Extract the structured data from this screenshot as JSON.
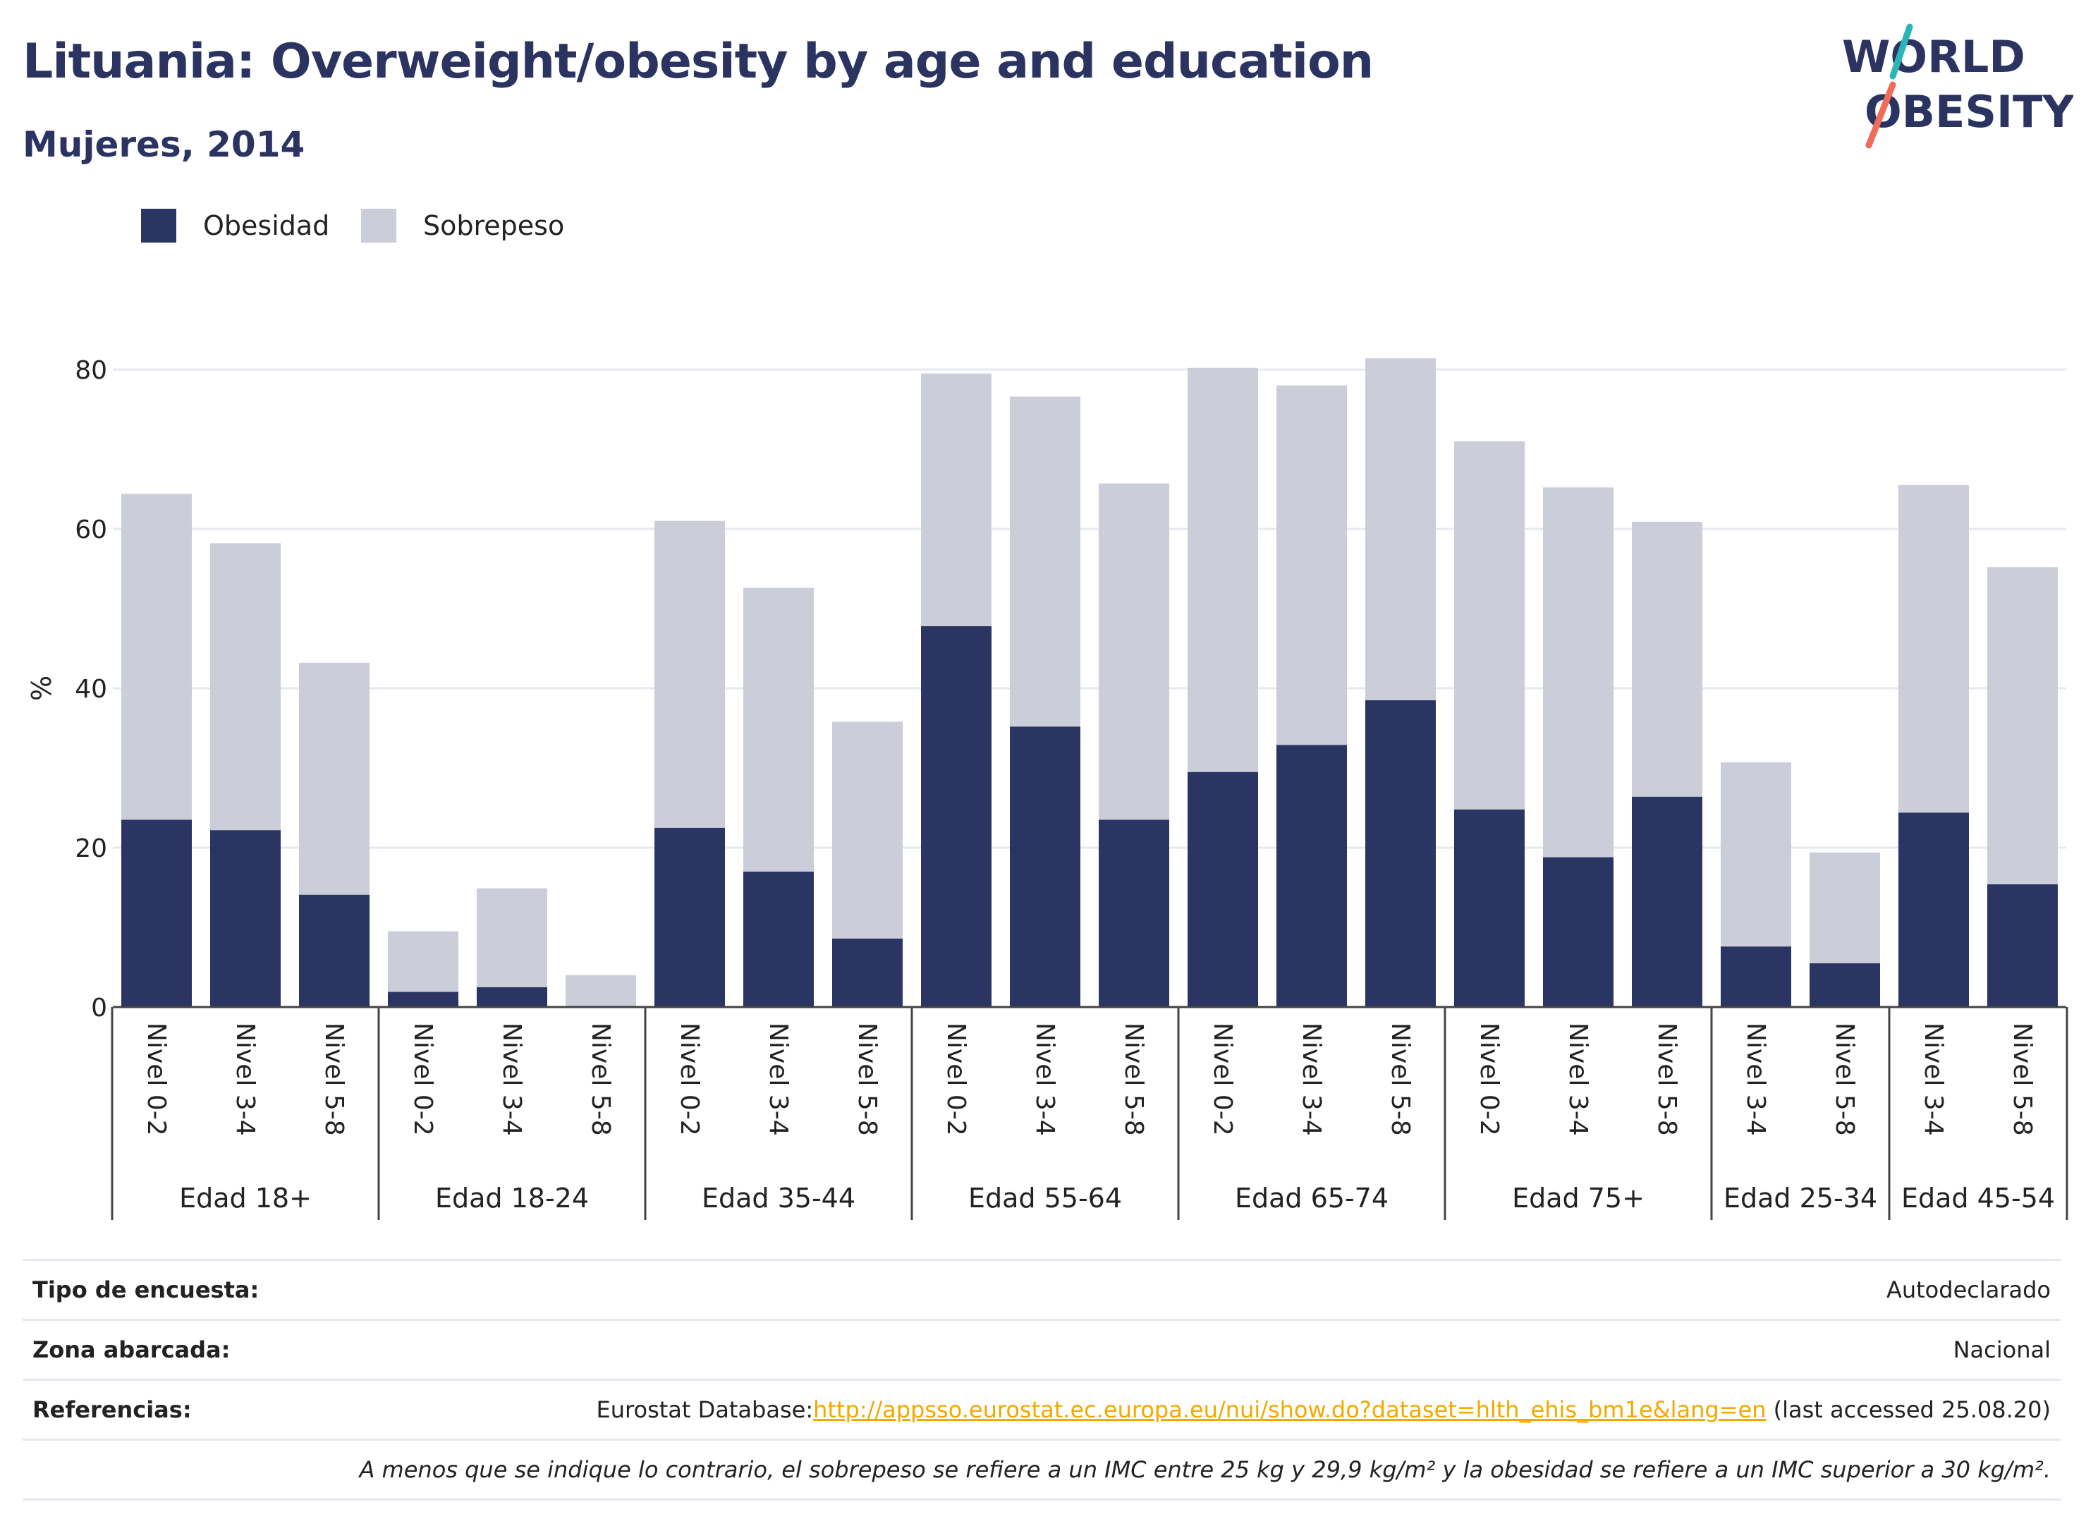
{
  "header": {
    "title": "Lituania: Overweight/obesity by age and education",
    "subtitle": "Mujeres, 2014"
  },
  "logo": {
    "line1": "WORLD",
    "line2": "OBESITY",
    "icon": "world-obesity-logo"
  },
  "colors": {
    "obesity": "#2b3563",
    "overweight": "#cbcdd9",
    "title": "#2b3361",
    "link": "#f2a900",
    "logo_slash_top": "#2bb5b8",
    "logo_slash_bottom": "#ef6b5a"
  },
  "chart_data": {
    "type": "bar",
    "stacked": true,
    "ylabel": "%",
    "ylim": [
      0,
      90
    ],
    "yticks": [
      0,
      20,
      40,
      60,
      80
    ],
    "grid": true,
    "legend_position": "top-left",
    "groups": [
      {
        "label": "Edad 18+",
        "categories": [
          "Nivel 0-2",
          "Nivel 3-4",
          "Nivel 5-8"
        ]
      },
      {
        "label": "Edad 18-24",
        "categories": [
          "Nivel 0-2",
          "Nivel 3-4",
          "Nivel 5-8"
        ]
      },
      {
        "label": "Edad 35-44",
        "categories": [
          "Nivel 0-2",
          "Nivel 3-4",
          "Nivel 5-8"
        ]
      },
      {
        "label": "Edad 55-64",
        "categories": [
          "Nivel 0-2",
          "Nivel 3-4",
          "Nivel 5-8"
        ]
      },
      {
        "label": "Edad 65-74",
        "categories": [
          "Nivel 0-2",
          "Nivel 3-4",
          "Nivel 5-8"
        ]
      },
      {
        "label": "Edad 75+",
        "categories": [
          "Nivel 0-2",
          "Nivel 3-4",
          "Nivel 5-8"
        ]
      },
      {
        "label": "Edad 25-34",
        "categories": [
          "Nivel 3-4",
          "Nivel 5-8"
        ]
      },
      {
        "label": "Edad 45-54",
        "categories": [
          "Nivel 3-4",
          "Nivel 5-8"
        ]
      }
    ],
    "series": [
      {
        "name": "Obesidad",
        "values": [
          23.5,
          22.2,
          14.1,
          1.9,
          2.5,
          0.0,
          22.5,
          17.0,
          8.6,
          47.8,
          35.2,
          23.5,
          29.5,
          32.9,
          38.5,
          24.8,
          18.8,
          26.4,
          7.6,
          5.5,
          24.4,
          15.4
        ]
      },
      {
        "name": "Sobrepeso",
        "values": [
          40.9,
          36.0,
          29.1,
          7.6,
          12.4,
          4.0,
          38.5,
          35.6,
          27.2,
          31.7,
          41.4,
          42.2,
          50.7,
          45.1,
          42.9,
          46.2,
          46.4,
          34.5,
          23.1,
          13.9,
          41.1,
          39.8
        ]
      }
    ]
  },
  "info": {
    "survey_type_label": "Tipo de encuesta:",
    "survey_type_value": "Autodeclarado",
    "area_label": "Zona abarcada:",
    "area_value": "Nacional",
    "references_label": "Referencias:",
    "references_prefix": "Eurostat Database:",
    "references_link": "http://appsso.eurostat.ec.europa.eu/nui/show.do?dataset=hlth_ehis_bm1e&lang=en",
    "references_suffix": " (last accessed 25.08.20)",
    "note": "A menos que se indique lo contrario, el sobrepeso se refiere a un IMC entre 25 kg y 29,9 kg/m² y la obesidad se refiere a un IMC superior a 30 kg/m²."
  }
}
